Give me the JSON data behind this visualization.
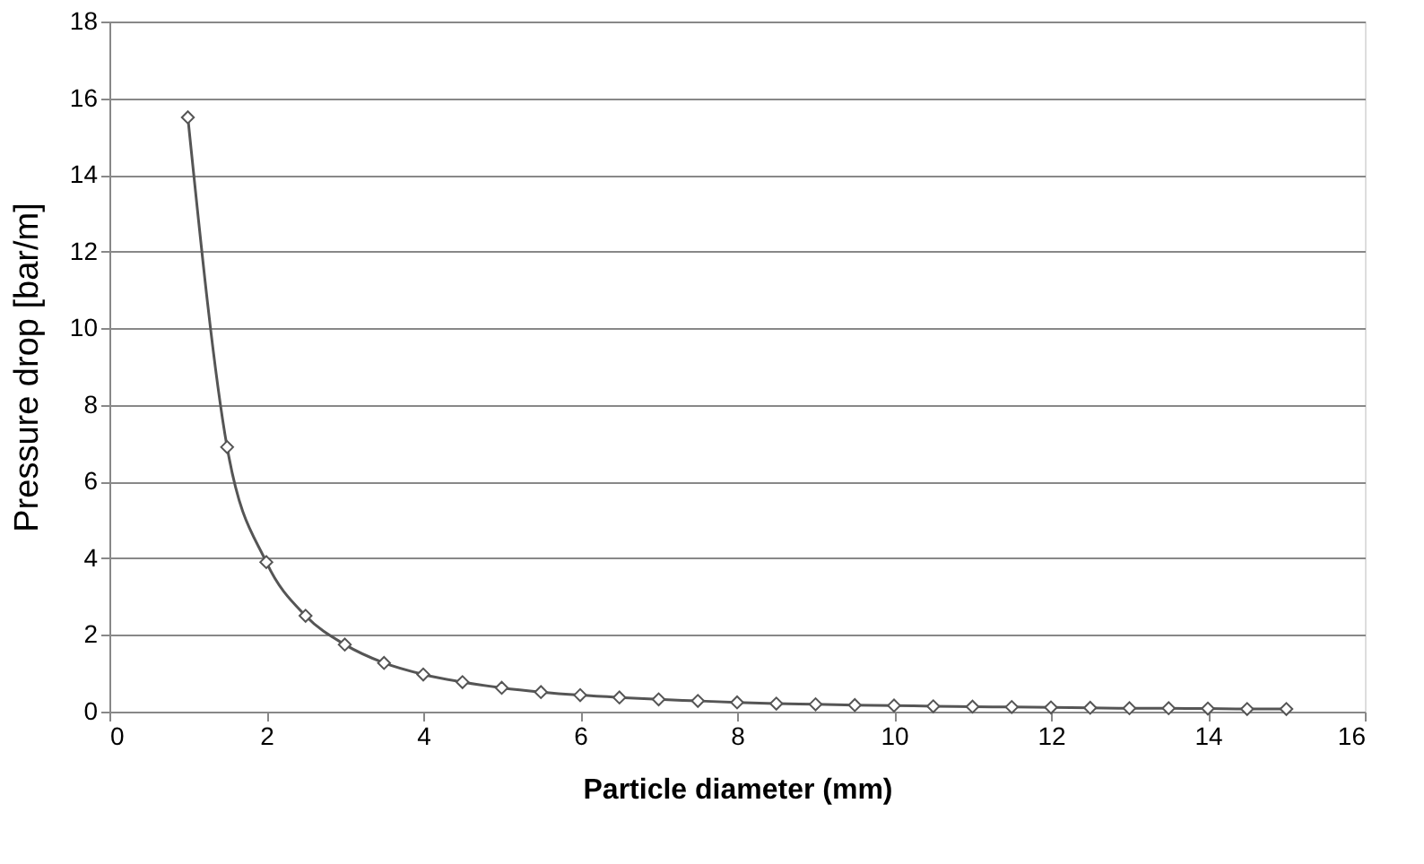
{
  "chart_data": {
    "type": "line",
    "xlabel": "Particle diameter (mm)",
    "ylabel": "Pressure drop [bar/m]",
    "x": [
      1,
      1.5,
      2,
      2.5,
      3,
      3.5,
      4,
      4.5,
      5,
      5.5,
      6,
      6.5,
      7,
      7.5,
      8,
      8.5,
      9,
      9.5,
      10,
      10.5,
      11,
      11.5,
      12,
      12.5,
      13,
      13.5,
      14,
      14.5,
      15
    ],
    "series": [
      {
        "color": "#555555",
        "values": [
          15.5,
          6.9,
          3.9,
          2.5,
          1.75,
          1.27,
          0.97,
          0.77,
          0.62,
          0.51,
          0.43,
          0.37,
          0.32,
          0.28,
          0.24,
          0.21,
          0.19,
          0.17,
          0.16,
          0.14,
          0.13,
          0.12,
          0.11,
          0.1,
          0.09,
          0.09,
          0.08,
          0.07,
          0.07
        ]
      }
    ],
    "xlim": [
      0,
      16
    ],
    "xticks": [
      0,
      2,
      4,
      6,
      8,
      10,
      12,
      14,
      16
    ],
    "ylim": [
      0,
      18
    ],
    "yticks": [
      0,
      2,
      4,
      6,
      8,
      10,
      12,
      14,
      16,
      18
    ],
    "grid": "y",
    "marker": "diamond",
    "line_style": "solid"
  }
}
